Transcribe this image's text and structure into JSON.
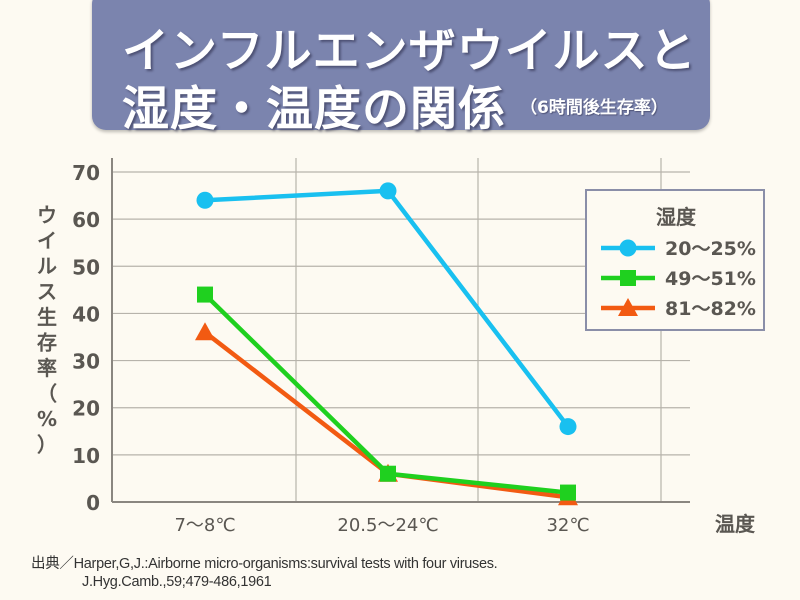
{
  "header": {
    "title_line1": "インフルエンザウイルスと",
    "title_line2": "湿度・温度の関係",
    "subtitle": "（6時間後生存率）"
  },
  "chart_data": {
    "type": "line",
    "title": "インフルエンザウイルスと湿度・温度の関係（6時間後生存率）",
    "xlabel": "温度",
    "ylabel": "ウイルス生存率（%）",
    "categories": [
      "7～8℃",
      "20.5～24℃",
      "32℃"
    ],
    "ylim": [
      0,
      70
    ],
    "yticks": [
      0,
      10,
      20,
      30,
      40,
      50,
      60,
      70
    ],
    "grid": true,
    "legend_title": "湿度",
    "legend_position": "top-right",
    "series": [
      {
        "name": "20～25%",
        "values": [
          64,
          66,
          16
        ],
        "color": "#19c0f0",
        "marker": "circle"
      },
      {
        "name": "49～51%",
        "values": [
          44,
          6,
          2
        ],
        "color": "#1fd01f",
        "marker": "square"
      },
      {
        "name": "81～82%",
        "values": [
          36,
          6,
          1
        ],
        "color": "#f25a12",
        "marker": "triangle"
      }
    ]
  },
  "footer": {
    "source_line1": "出典／Harper,G,J.:Airborne micro-organisms:survival tests with four viruses.",
    "source_line2": "J.Hyg.Camb.,59;479-486,1961"
  },
  "colors": {
    "banner": "#7b84ae",
    "background": "#fdfaf2",
    "text": "#555555"
  }
}
